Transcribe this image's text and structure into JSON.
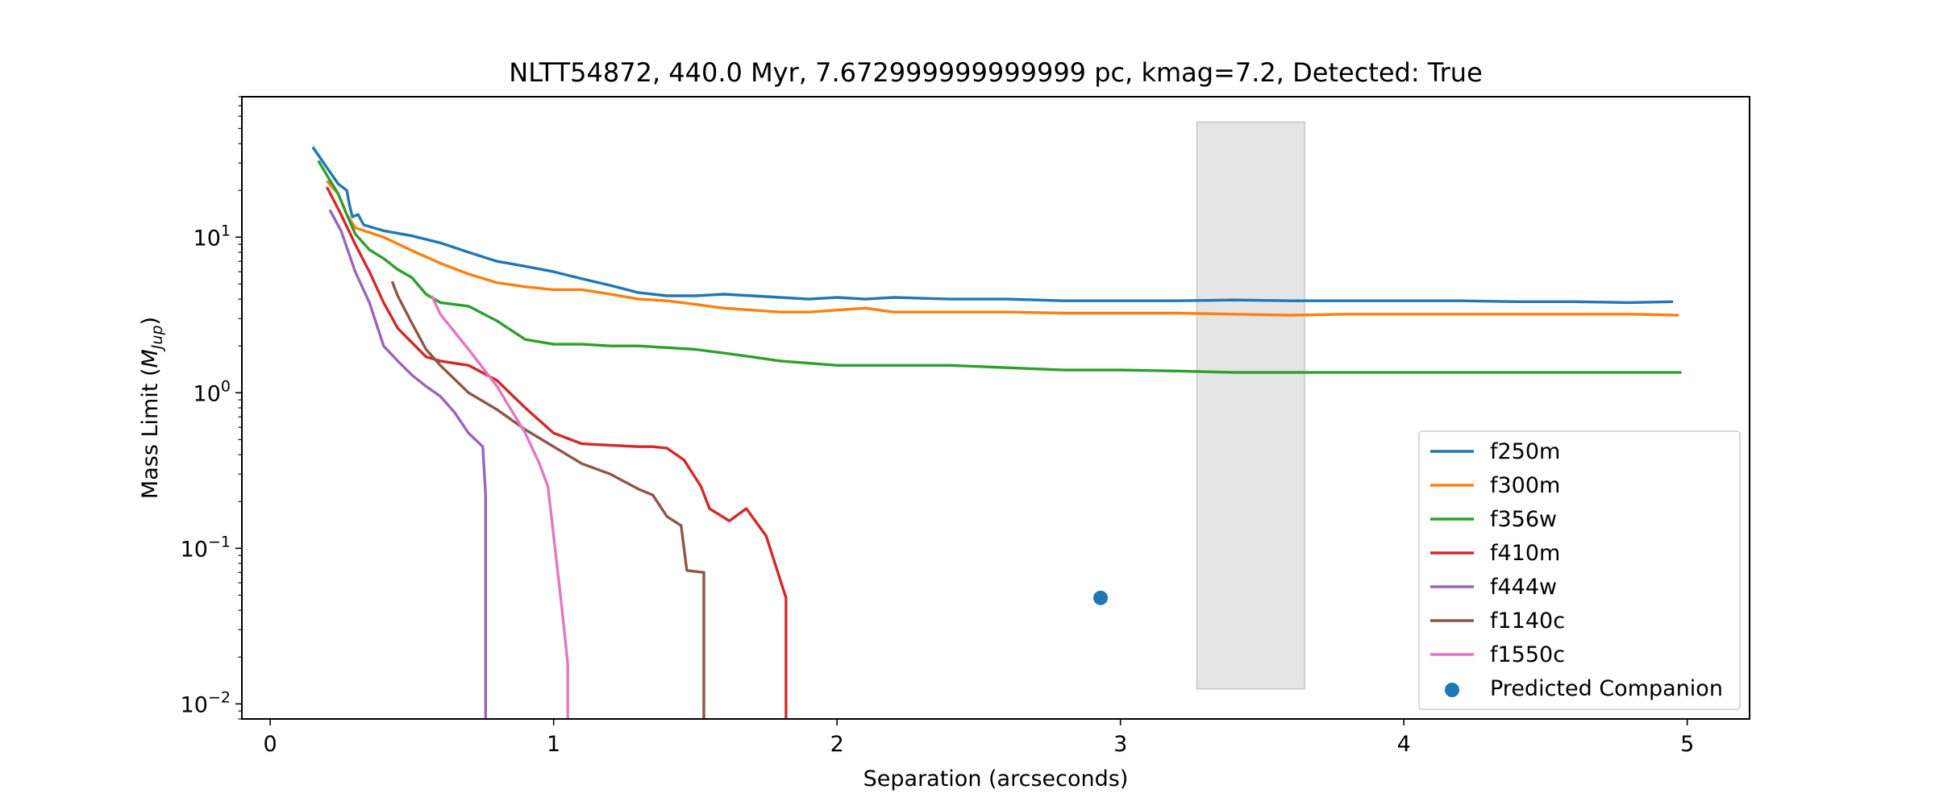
{
  "chart_data": {
    "type": "line",
    "title": "NLTT54872, 440.0 Myr, 7.672999999999999 pc, kmag=7.2, Detected: True",
    "xlabel": "Separation (arcseconds)",
    "ylabel_main": "Mass Limit (",
    "ylabel_symbol": "M",
    "ylabel_sub": "Jup",
    "ylabel_close": ")",
    "xlim": [
      -0.1,
      5.22
    ],
    "ylim": [
      0.008,
      80
    ],
    "yscale": "log",
    "grid": false,
    "legend_position": "lower right",
    "x_ticks": [
      {
        "value": 0,
        "label": "0"
      },
      {
        "value": 1,
        "label": "1"
      },
      {
        "value": 2,
        "label": "2"
      },
      {
        "value": 3,
        "label": "3"
      },
      {
        "value": 4,
        "label": "4"
      },
      {
        "value": 5,
        "label": "5"
      }
    ],
    "y_ticks": [
      {
        "value": 0.01,
        "base": "10",
        "exp": "−2"
      },
      {
        "value": 0.1,
        "base": "10",
        "exp": "−1"
      },
      {
        "value": 1,
        "base": "10",
        "exp": "0"
      },
      {
        "value": 10,
        "base": "10",
        "exp": "1"
      }
    ],
    "shaded_region": {
      "x": [
        3.27,
        3.65
      ],
      "y": [
        0.0125,
        55
      ],
      "color": "#e5e5e5"
    },
    "series": [
      {
        "name": "f250m",
        "color": "#1f77b4",
        "points": [
          [
            0.15,
            38
          ],
          [
            0.2,
            28
          ],
          [
            0.24,
            22
          ],
          [
            0.27,
            20
          ],
          [
            0.28,
            16
          ],
          [
            0.29,
            13.5
          ],
          [
            0.31,
            14
          ],
          [
            0.33,
            12
          ],
          [
            0.4,
            11
          ],
          [
            0.5,
            10.2
          ],
          [
            0.6,
            9.2
          ],
          [
            0.7,
            8
          ],
          [
            0.8,
            7
          ],
          [
            0.9,
            6.5
          ],
          [
            1.0,
            6
          ],
          [
            1.1,
            5.4
          ],
          [
            1.2,
            4.9
          ],
          [
            1.3,
            4.4
          ],
          [
            1.4,
            4.2
          ],
          [
            1.5,
            4.2
          ],
          [
            1.6,
            4.3
          ],
          [
            1.7,
            4.2
          ],
          [
            1.8,
            4.1
          ],
          [
            1.9,
            4.0
          ],
          [
            2.0,
            4.1
          ],
          [
            2.1,
            4.0
          ],
          [
            2.2,
            4.1
          ],
          [
            2.4,
            4.0
          ],
          [
            2.6,
            4.0
          ],
          [
            2.8,
            3.9
          ],
          [
            3.0,
            3.9
          ],
          [
            3.2,
            3.9
          ],
          [
            3.4,
            3.95
          ],
          [
            3.6,
            3.9
          ],
          [
            3.8,
            3.9
          ],
          [
            4.0,
            3.9
          ],
          [
            4.2,
            3.9
          ],
          [
            4.4,
            3.85
          ],
          [
            4.6,
            3.85
          ],
          [
            4.8,
            3.8
          ],
          [
            4.95,
            3.85
          ]
        ]
      },
      {
        "name": "f300m",
        "color": "#ff7f0e",
        "points": [
          [
            0.2,
            23
          ],
          [
            0.24,
            19
          ],
          [
            0.27,
            14
          ],
          [
            0.3,
            11.5
          ],
          [
            0.4,
            10
          ],
          [
            0.5,
            8.2
          ],
          [
            0.6,
            6.8
          ],
          [
            0.7,
            5.8
          ],
          [
            0.8,
            5.1
          ],
          [
            0.9,
            4.8
          ],
          [
            1.0,
            4.6
          ],
          [
            1.1,
            4.6
          ],
          [
            1.2,
            4.3
          ],
          [
            1.3,
            4.0
          ],
          [
            1.4,
            3.9
          ],
          [
            1.5,
            3.7
          ],
          [
            1.6,
            3.5
          ],
          [
            1.7,
            3.4
          ],
          [
            1.8,
            3.3
          ],
          [
            1.9,
            3.3
          ],
          [
            2.0,
            3.4
          ],
          [
            2.1,
            3.5
          ],
          [
            2.2,
            3.3
          ],
          [
            2.3,
            3.3
          ],
          [
            2.4,
            3.3
          ],
          [
            2.5,
            3.3
          ],
          [
            2.6,
            3.3
          ],
          [
            2.8,
            3.25
          ],
          [
            3.0,
            3.25
          ],
          [
            3.2,
            3.25
          ],
          [
            3.4,
            3.2
          ],
          [
            3.6,
            3.15
          ],
          [
            3.8,
            3.2
          ],
          [
            4.0,
            3.2
          ],
          [
            4.2,
            3.2
          ],
          [
            4.4,
            3.2
          ],
          [
            4.6,
            3.2
          ],
          [
            4.8,
            3.2
          ],
          [
            4.97,
            3.15
          ]
        ]
      },
      {
        "name": "f356w",
        "color": "#2ca02c",
        "points": [
          [
            0.17,
            31
          ],
          [
            0.2,
            25
          ],
          [
            0.24,
            19
          ],
          [
            0.27,
            14
          ],
          [
            0.3,
            10.5
          ],
          [
            0.35,
            8.3
          ],
          [
            0.4,
            7.3
          ],
          [
            0.45,
            6.2
          ],
          [
            0.5,
            5.5
          ],
          [
            0.55,
            4.3
          ],
          [
            0.6,
            3.8
          ],
          [
            0.7,
            3.6
          ],
          [
            0.8,
            2.9
          ],
          [
            0.9,
            2.2
          ],
          [
            1.0,
            2.05
          ],
          [
            1.1,
            2.05
          ],
          [
            1.2,
            2.0
          ],
          [
            1.3,
            2.0
          ],
          [
            1.4,
            1.95
          ],
          [
            1.5,
            1.9
          ],
          [
            1.6,
            1.8
          ],
          [
            1.7,
            1.7
          ],
          [
            1.8,
            1.6
          ],
          [
            1.9,
            1.55
          ],
          [
            2.0,
            1.5
          ],
          [
            2.2,
            1.5
          ],
          [
            2.4,
            1.5
          ],
          [
            2.6,
            1.45
          ],
          [
            2.8,
            1.4
          ],
          [
            3.0,
            1.4
          ],
          [
            3.2,
            1.38
          ],
          [
            3.4,
            1.35
          ],
          [
            3.6,
            1.35
          ],
          [
            3.8,
            1.35
          ],
          [
            4.0,
            1.35
          ],
          [
            4.2,
            1.35
          ],
          [
            4.4,
            1.35
          ],
          [
            4.6,
            1.35
          ],
          [
            4.8,
            1.35
          ],
          [
            4.98,
            1.35
          ]
        ]
      },
      {
        "name": "f410m",
        "color": "#d62728",
        "points": [
          [
            0.2,
            21
          ],
          [
            0.25,
            14
          ],
          [
            0.3,
            9
          ],
          [
            0.35,
            6
          ],
          [
            0.4,
            3.8
          ],
          [
            0.45,
            2.6
          ],
          [
            0.5,
            2.1
          ],
          [
            0.55,
            1.7
          ],
          [
            0.6,
            1.6
          ],
          [
            0.7,
            1.5
          ],
          [
            0.8,
            1.2
          ],
          [
            0.9,
            0.8
          ],
          [
            1.0,
            0.55
          ],
          [
            1.1,
            0.47
          ],
          [
            1.2,
            0.46
          ],
          [
            1.3,
            0.45
          ],
          [
            1.35,
            0.45
          ],
          [
            1.4,
            0.44
          ],
          [
            1.46,
            0.37
          ],
          [
            1.52,
            0.25
          ],
          [
            1.55,
            0.18
          ],
          [
            1.62,
            0.15
          ],
          [
            1.68,
            0.18
          ],
          [
            1.75,
            0.12
          ],
          [
            1.82,
            0.048
          ],
          [
            1.82,
            0.005
          ]
        ]
      },
      {
        "name": "f444w",
        "color": "#9467bd",
        "points": [
          [
            0.21,
            15
          ],
          [
            0.25,
            11
          ],
          [
            0.3,
            6
          ],
          [
            0.35,
            3.8
          ],
          [
            0.4,
            2.0
          ],
          [
            0.45,
            1.6
          ],
          [
            0.5,
            1.3
          ],
          [
            0.55,
            1.1
          ],
          [
            0.6,
            0.95
          ],
          [
            0.65,
            0.75
          ],
          [
            0.7,
            0.55
          ],
          [
            0.75,
            0.45
          ],
          [
            0.76,
            0.22
          ],
          [
            0.76,
            0.005
          ]
        ]
      },
      {
        "name": "f1140c",
        "color": "#8c564b",
        "points": [
          [
            0.43,
            5.2
          ],
          [
            0.45,
            4.2
          ],
          [
            0.5,
            2.8
          ],
          [
            0.55,
            1.9
          ],
          [
            0.6,
            1.5
          ],
          [
            0.7,
            1.0
          ],
          [
            0.8,
            0.78
          ],
          [
            0.9,
            0.58
          ],
          [
            1.0,
            0.45
          ],
          [
            1.1,
            0.35
          ],
          [
            1.2,
            0.3
          ],
          [
            1.3,
            0.24
          ],
          [
            1.35,
            0.22
          ],
          [
            1.4,
            0.16
          ],
          [
            1.45,
            0.14
          ],
          [
            1.47,
            0.072
          ],
          [
            1.53,
            0.07
          ],
          [
            1.53,
            0.005
          ]
        ]
      },
      {
        "name": "f1550c",
        "color": "#e377c2",
        "points": [
          [
            0.57,
            4.2
          ],
          [
            0.6,
            3.2
          ],
          [
            0.7,
            1.9
          ],
          [
            0.8,
            1.1
          ],
          [
            0.9,
            0.55
          ],
          [
            0.95,
            0.35
          ],
          [
            0.98,
            0.25
          ],
          [
            1.0,
            0.12
          ],
          [
            1.03,
            0.04
          ],
          [
            1.05,
            0.018
          ],
          [
            1.05,
            0.005
          ]
        ]
      }
    ],
    "scatter": [
      {
        "name": "Predicted Companion",
        "color": "#1f77b4",
        "points": [
          [
            2.93,
            0.048
          ]
        ]
      }
    ]
  }
}
